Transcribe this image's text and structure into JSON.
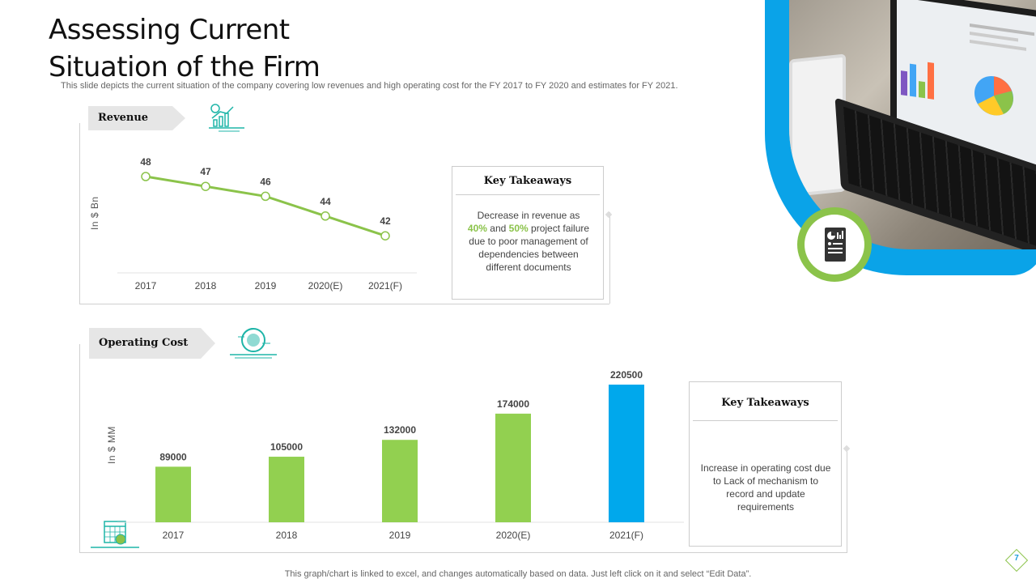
{
  "slide": {
    "title_line1": "Assessing Current",
    "title_line2": "Situation of the Firm",
    "subtitle": "This slide depicts the current situation of the company covering low revenues and high operating cost for the FY 2017 to FY 2020 and estimates for FY 2021.",
    "footnote": "This graph/chart is linked to excel, and changes automatically based on data. Just left click on it and select “Edit Data”.",
    "page_number": "7"
  },
  "revenue": {
    "tag": "Revenue",
    "icon": "growth-chart-icon",
    "takeaway_title": "Key Takeaways",
    "takeaway_parts": [
      "Decrease in revenue  as",
      "40%",
      " and ",
      "50%",
      " project failure due to poor management  of dependencies between different documents"
    ]
  },
  "operating_cost": {
    "tag": "Operating Cost",
    "icon": "money-cycle-icon",
    "calendar_icon": "calendar-money-icon",
    "takeaway_title": "Key Takeaways",
    "takeaway_text": "Increase in operating cost due to Lack of mechanism to record and update requirements"
  },
  "colors": {
    "green": "#8bc34a",
    "blue": "#00a8ec",
    "accent_blue": "#0aa3e8"
  },
  "chart_data": [
    {
      "type": "line",
      "ylabel": "In $ Bn",
      "categories": [
        "2017",
        "2018",
        "2019",
        "2020(E)",
        "2021(F)"
      ],
      "values": [
        48,
        47,
        46,
        44,
        42
      ],
      "color": "#8bc34a"
    },
    {
      "type": "bar",
      "ylabel": "In $ MM",
      "categories": [
        "2017",
        "2018",
        "2019",
        "2020(E)",
        "2021(F)"
      ],
      "values": [
        89000,
        105000,
        132000,
        174000,
        220500
      ],
      "colors": [
        "#92d050",
        "#92d050",
        "#92d050",
        "#92d050",
        "#00a8ec"
      ]
    }
  ]
}
